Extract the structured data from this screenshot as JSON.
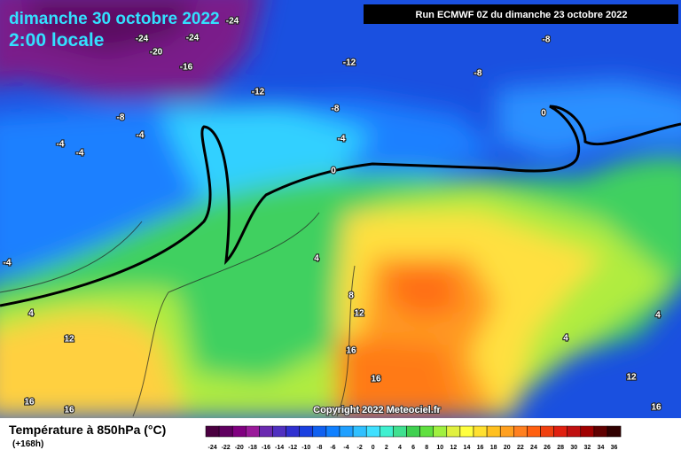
{
  "header": {
    "date": "dimanche 30 octobre 2022",
    "time": "2:00 locale",
    "run": "Run ECMWF 0Z du dimanche 23 octobre 2022"
  },
  "map": {
    "copyright": "Copyright 2022 Meteociel.fr",
    "contour_labels": [
      -24,
      -24,
      -24,
      -20,
      -16,
      -12,
      -12,
      -8,
      -8,
      -8,
      -8,
      -4,
      -4,
      -4,
      -4,
      -4,
      0,
      0,
      4,
      4,
      4,
      4,
      8,
      12,
      12,
      12,
      16,
      16,
      16,
      16,
      16
    ]
  },
  "legend": {
    "title": "Température à 850hPa (°C)",
    "subtitle": "(+168h)",
    "ticks": [
      -24,
      -22,
      -20,
      -18,
      -16,
      -14,
      -12,
      -10,
      -8,
      -6,
      -4,
      -2,
      0,
      2,
      4,
      6,
      8,
      10,
      12,
      14,
      16,
      18,
      20,
      22,
      24,
      26,
      28,
      30,
      32,
      34,
      36
    ],
    "colors": [
      "#4a0040",
      "#600060",
      "#800080",
      "#9a1a9a",
      "#6a2ab0",
      "#5030c0",
      "#3030d0",
      "#1a40e0",
      "#1060f0",
      "#1080ff",
      "#20a0ff",
      "#30c0ff",
      "#40e0ff",
      "#40f0d0",
      "#40e090",
      "#40d050",
      "#60e040",
      "#a0f040",
      "#e0f040",
      "#ffff40",
      "#ffe030",
      "#ffc020",
      "#ffa020",
      "#ff8020",
      "#ff6010",
      "#f04010",
      "#e02010",
      "#c01010",
      "#a00000",
      "#600000",
      "#300000"
    ]
  }
}
